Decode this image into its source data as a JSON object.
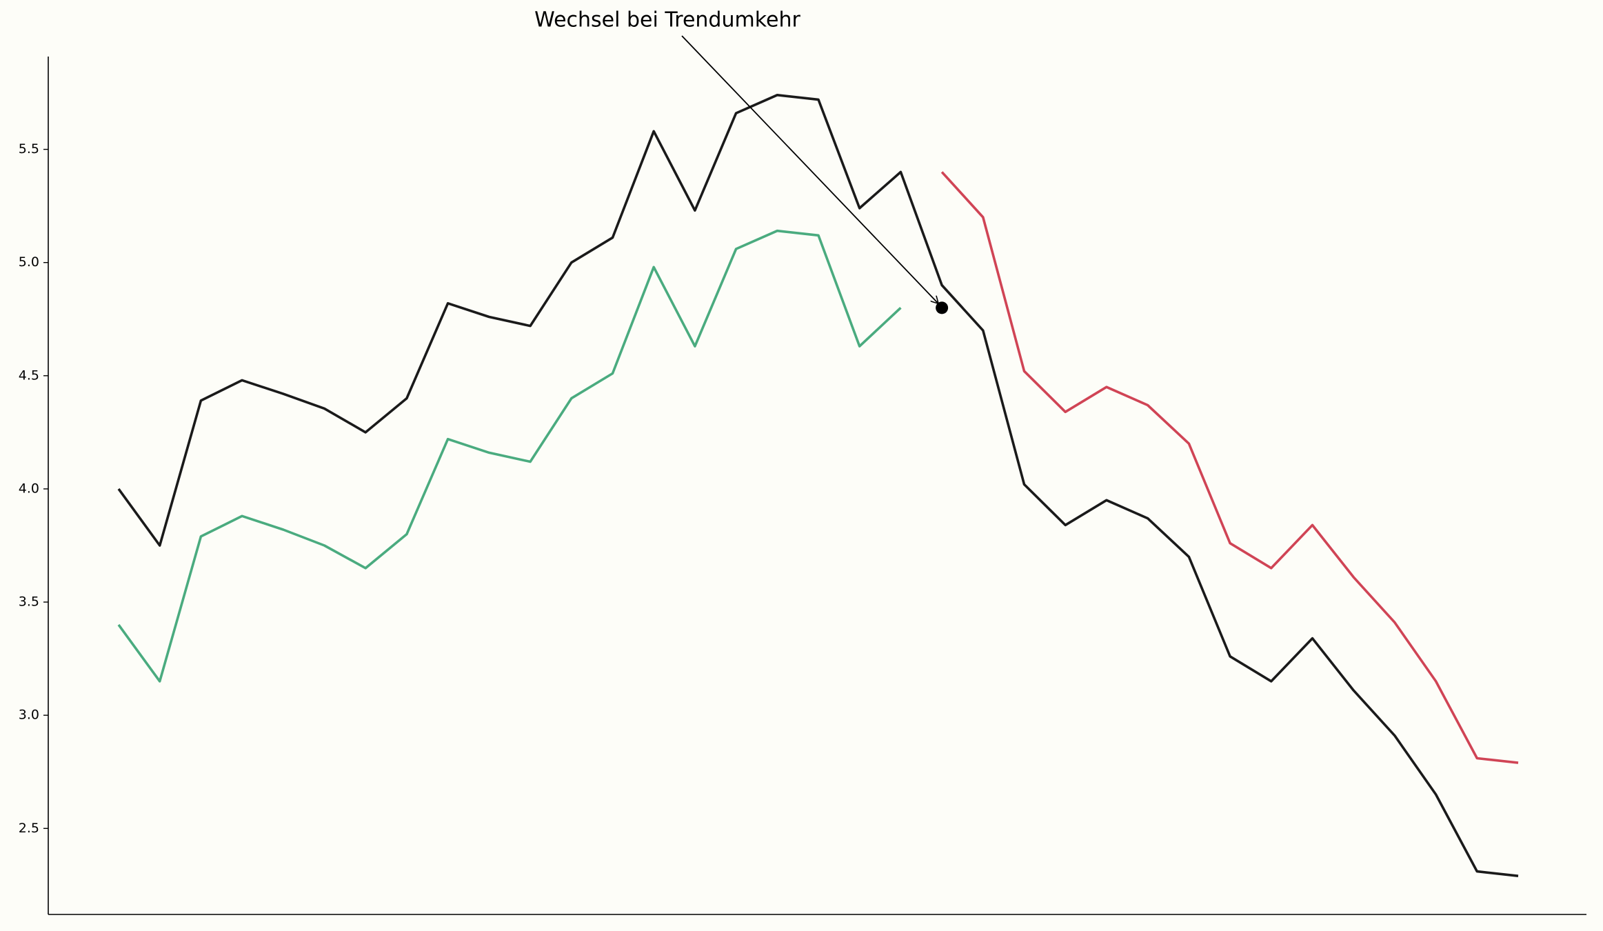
{
  "chart_data": {
    "type": "line",
    "categories": [
      null,
      null,
      null,
      null,
      null,
      null,
      null,
      null,
      null,
      null,
      null,
      null,
      null,
      null,
      null,
      null,
      null,
      null,
      null,
      null,
      null,
      null,
      null,
      null,
      null,
      null,
      null,
      null,
      null,
      null,
      null,
      null,
      null,
      null,
      null
    ],
    "series": [
      {
        "color": "#1a1a1a",
        "values": [
          4.0,
          3.75,
          4.39,
          4.48,
          4.42,
          4.355,
          4.25,
          4.4,
          4.82,
          4.76,
          4.72,
          5.0,
          5.11,
          5.58,
          5.23,
          5.66,
          5.74,
          5.72,
          5.24,
          5.4,
          4.9,
          4.7,
          4.02,
          3.84,
          3.95,
          3.87,
          3.7,
          3.26,
          3.15,
          3.34,
          3.11,
          2.91,
          2.65,
          2.31,
          2.29
        ]
      },
      {
        "color": "#4aab7f",
        "values": [
          3.4,
          3.15,
          3.79,
          3.88,
          3.82,
          3.75,
          3.65,
          3.8,
          4.22,
          4.16,
          4.12,
          4.4,
          4.51,
          4.98,
          4.63,
          5.06,
          5.14,
          5.12,
          4.63,
          4.8,
          null,
          null,
          null,
          null,
          null,
          null,
          null,
          null,
          null,
          null,
          null,
          null,
          null,
          null,
          null
        ]
      },
      {
        "color": "#d04455",
        "values": [
          null,
          null,
          null,
          null,
          null,
          null,
          null,
          null,
          null,
          null,
          null,
          null,
          null,
          null,
          null,
          null,
          null,
          null,
          null,
          null,
          5.4,
          5.2,
          4.52,
          4.34,
          4.45,
          4.37,
          4.2,
          3.76,
          3.65,
          3.84,
          3.61,
          3.41,
          3.15,
          2.81,
          2.79
        ]
      }
    ],
    "ylim": [
      2.12,
      5.91
    ],
    "yticks": [
      2.5,
      {
        "value": 3,
        "label": "3.0"
      },
      3.5,
      {
        "value": 4,
        "label": "4.0"
      },
      4.5,
      {
        "value": 5,
        "label": "5.0"
      },
      5.5
    ],
    "grid": false,
    "annotation": {
      "text": "Wechsel bei Trendumkehr",
      "xy": [
        20,
        4.8
      ],
      "color": "#000000"
    }
  }
}
